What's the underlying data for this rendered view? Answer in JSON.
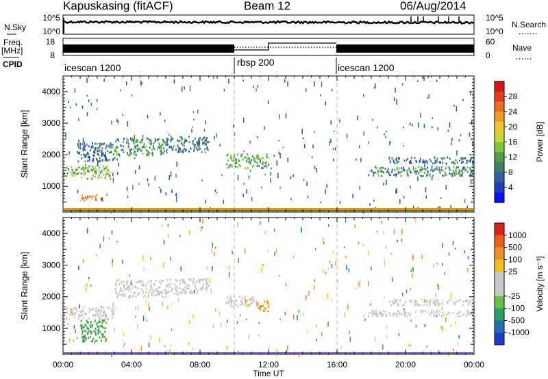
{
  "header": {
    "station": "Kapuskasing (fitACF)",
    "beam": "Beam 12",
    "date": "06/Aug/2014"
  },
  "noise_panel": {
    "left_label": "N.Sky",
    "right_label": "N.Search",
    "left_ticks": [
      "10^5",
      "10^0"
    ],
    "right_ticks": [
      "10^5",
      "10^0"
    ]
  },
  "freq_panel": {
    "left_label_top": "Freq.",
    "left_label_bottom": "[MHz]",
    "right_label": "Nave",
    "left_ticks": [
      "18",
      "8"
    ],
    "right_ticks": [
      "60",
      "0"
    ]
  },
  "cpid": {
    "label": "CPID",
    "segments": [
      {
        "name": "icescan 1200",
        "start_h": 0,
        "end_h": 10
      },
      {
        "name": "rbsp 200",
        "start_h": 10,
        "end_h": 16
      },
      {
        "name": "icescan 1200",
        "start_h": 16,
        "end_h": 24
      }
    ]
  },
  "chart_data": [
    {
      "type": "heatmap",
      "quantity": "Power",
      "ylabel": "Slant Range [km]",
      "ylim": [
        180,
        4500
      ],
      "yticks": [
        1000,
        2000,
        3000,
        4000
      ],
      "xlim_h": [
        0,
        24
      ],
      "colorbar_label": "Power [dB]",
      "colorbar_ticks": [
        "4",
        "8",
        "12",
        "16",
        "20",
        "24",
        "28"
      ],
      "colorbar_colors": [
        "#0010ff",
        "#1a3fc0",
        "#2f5fa8",
        "#3f7f6a",
        "#4ca04a",
        "#80c838",
        "#c8d830",
        "#f0c828",
        "#f29a1e",
        "#f06a18",
        "#e83c14",
        "#e01010"
      ],
      "echo_bands": [
        {
          "start_h": 0.0,
          "end_h": 1.0,
          "range_km": [
            1350,
            1650
          ],
          "level": 12
        },
        {
          "start_h": 1.0,
          "end_h": 2.8,
          "range_km": [
            1250,
            1700
          ],
          "level": 12
        },
        {
          "start_h": 1.0,
          "end_h": 2.3,
          "range_km": [
            580,
            800
          ],
          "level": 20
        },
        {
          "start_h": 0.8,
          "end_h": 3.0,
          "range_km": [
            1800,
            2400
          ],
          "level": 6
        },
        {
          "start_h": 3.0,
          "end_h": 6.0,
          "range_km": [
            2000,
            2550
          ],
          "level": 9
        },
        {
          "start_h": 6.0,
          "end_h": 8.5,
          "range_km": [
            2100,
            2600
          ],
          "level": 7
        },
        {
          "start_h": 9.5,
          "end_h": 12.0,
          "range_km": [
            1600,
            2050
          ],
          "level": 10
        },
        {
          "start_h": 19.0,
          "end_h": 24.0,
          "range_km": [
            1750,
            1950
          ],
          "level": 6
        },
        {
          "start_h": 17.8,
          "end_h": 24.0,
          "range_km": [
            1350,
            1650
          ],
          "level": 8
        }
      ],
      "ground_scatter_range_km": [
        180,
        250
      ]
    },
    {
      "type": "heatmap",
      "quantity": "Velocity",
      "ylabel": "Slant Range [km]",
      "ylim": [
        180,
        4500
      ],
      "yticks": [
        1000,
        2000,
        3000,
        4000
      ],
      "xlim_h": [
        0,
        24
      ],
      "colorbar_label": "Velocity [m s⁻¹]",
      "colorbar_ticks": [
        "1000",
        "500",
        "100",
        "25",
        "-25",
        "-100",
        "-500",
        "-1000"
      ],
      "colorbar_colors": [
        "#1c3cd0",
        "#2070b0",
        "#30a060",
        "#60c840",
        "#c8c8c8",
        "#c8c8c8",
        "#f0c020",
        "#f09020",
        "#f06010",
        "#e02010"
      ],
      "echo_bands": [
        {
          "start_h": 0.0,
          "end_h": 3.0,
          "range_km": [
            1300,
            1700
          ],
          "level": 0
        },
        {
          "start_h": 3.0,
          "end_h": 6.0,
          "range_km": [
            2000,
            2550
          ],
          "level": 0
        },
        {
          "start_h": 6.0,
          "end_h": 8.5,
          "range_km": [
            2100,
            2600
          ],
          "level": 0
        },
        {
          "start_h": 1.0,
          "end_h": 2.5,
          "range_km": [
            600,
            1300
          ],
          "level": 60
        },
        {
          "start_h": 9.5,
          "end_h": 11.3,
          "range_km": [
            1700,
            2050
          ],
          "level": 0
        },
        {
          "start_h": 11.3,
          "end_h": 12.0,
          "range_km": [
            1550,
            1900
          ],
          "level": -150
        },
        {
          "start_h": 17.8,
          "end_h": 24.0,
          "range_km": [
            1400,
            1600
          ],
          "level": 0
        },
        {
          "start_h": 19.0,
          "end_h": 24.0,
          "range_km": [
            1750,
            1950
          ],
          "level": 0
        }
      ]
    }
  ],
  "x_axis": {
    "label": "Time UT",
    "ticks": [
      "00:00",
      "04:00",
      "08:00",
      "12:00",
      "16:00",
      "20:00",
      "00:00"
    ]
  }
}
